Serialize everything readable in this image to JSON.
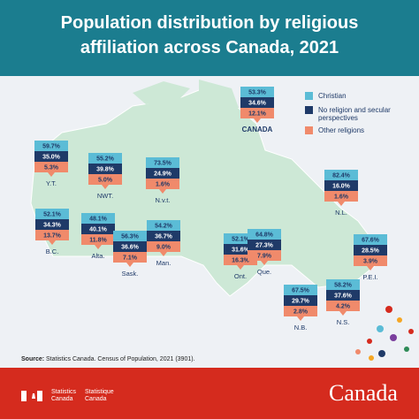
{
  "header": {
    "title": "Population distribution by religious affiliation across Canada, 2021"
  },
  "legend": [
    {
      "label": "Christian",
      "color": "#5bbcd6"
    },
    {
      "label": "No religion and secular perspectives",
      "color": "#1f3a68"
    },
    {
      "label": "Other religions",
      "color": "#f08a6b"
    }
  ],
  "regions": [
    {
      "name": "CANADA",
      "values": [
        "53.3%",
        "34.6%",
        "12.1%"
      ]
    },
    {
      "name": "Y.T.",
      "values": [
        "59.7%",
        "35.0%",
        "5.3%"
      ]
    },
    {
      "name": "NWT.",
      "values": [
        "55.2%",
        "39.8%",
        "5.0%"
      ]
    },
    {
      "name": "N.v.t.",
      "values": [
        "73.5%",
        "24.9%",
        "1.6%"
      ]
    },
    {
      "name": "N.L.",
      "values": [
        "82.4%",
        "16.0%",
        "1.6%"
      ]
    },
    {
      "name": "B.C.",
      "values": [
        "52.1%",
        "34.3%",
        "13.7%"
      ]
    },
    {
      "name": "Alta.",
      "values": [
        "48.1%",
        "40.1%",
        "11.8%"
      ]
    },
    {
      "name": "Sask.",
      "values": [
        "56.3%",
        "36.6%",
        "7.1%"
      ]
    },
    {
      "name": "Man.",
      "values": [
        "54.2%",
        "36.7%",
        "9.0%"
      ]
    },
    {
      "name": "Ont.",
      "values": [
        "52.1%",
        "31.6%",
        "16.3%"
      ]
    },
    {
      "name": "Que.",
      "values": [
        "64.8%",
        "27.3%",
        "7.9%"
      ]
    },
    {
      "name": "P.E.I.",
      "values": [
        "67.6%",
        "28.5%",
        "3.9%"
      ]
    },
    {
      "name": "N.B.",
      "values": [
        "67.5%",
        "29.7%",
        "2.8%"
      ]
    },
    {
      "name": "N.S.",
      "values": [
        "58.2%",
        "37.6%",
        "4.2%"
      ]
    }
  ],
  "footer": {
    "source_label": "Source:",
    "source": "Statistics Canada. Census of Population, 2021 (3901).",
    "agency_en": "Statistics Canada",
    "agency_fr": "Statistique Canada",
    "wordmark": "Canada"
  }
}
